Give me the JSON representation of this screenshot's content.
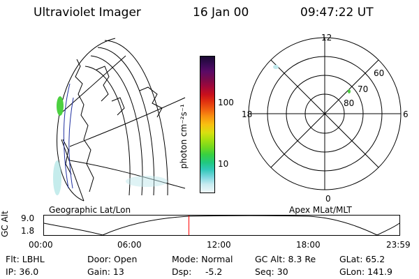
{
  "header": {
    "instrument": "Ultraviolet Imager",
    "date": "16 Jan 00",
    "time": "09:47:22 UT"
  },
  "colorbar": {
    "label": "photon cm⁻²s⁻¹",
    "ticks": [
      "100",
      "10"
    ],
    "colors": [
      "#1a0a33",
      "#3a0a55",
      "#5a0a66",
      "#7a0a4a",
      "#a0083a",
      "#c8101c",
      "#e03010",
      "#f06010",
      "#f89010",
      "#f8c010",
      "#d8e010",
      "#a8e010",
      "#70d820",
      "#38d040",
      "#20c880",
      "#30c8b8",
      "#80d8e0",
      "#c8ecf0",
      "#f0f8fa"
    ]
  },
  "left_map": {
    "caption": "Geographic Lat/Lon"
  },
  "polar_plot": {
    "caption": "Apex MLat/MLT",
    "mlt_labels": [
      "12",
      "18",
      "6",
      "0"
    ],
    "lat_labels": [
      "60",
      "70",
      "80"
    ]
  },
  "timeline": {
    "axis_title": "GC Alt",
    "y_ticks": [
      "9.0",
      "1.8"
    ],
    "x_ticks": [
      "00:00",
      "06:00",
      "12:00",
      "18:00",
      "23:59"
    ],
    "marker_time": "09:47"
  },
  "info": {
    "col1": [
      "Flt: LBHL",
      "IP: 36.0"
    ],
    "col2": [
      "Door: Open",
      "Gain: 13"
    ],
    "col3a": [
      "Mode: Normal",
      "Dsp:"
    ],
    "col3b": [
      "",
      "-5.2"
    ],
    "col4": [
      "GC Alt: 8.3 Re",
      "Seq: 30"
    ],
    "col5": [
      "GLat:  65.2",
      "GLon: 141.9"
    ]
  },
  "colors": {
    "marker": "#ff0000",
    "aurora_green": "#4cd040",
    "aurora_faint": "#9fe0e0",
    "coast_blue": "#2030a0"
  }
}
